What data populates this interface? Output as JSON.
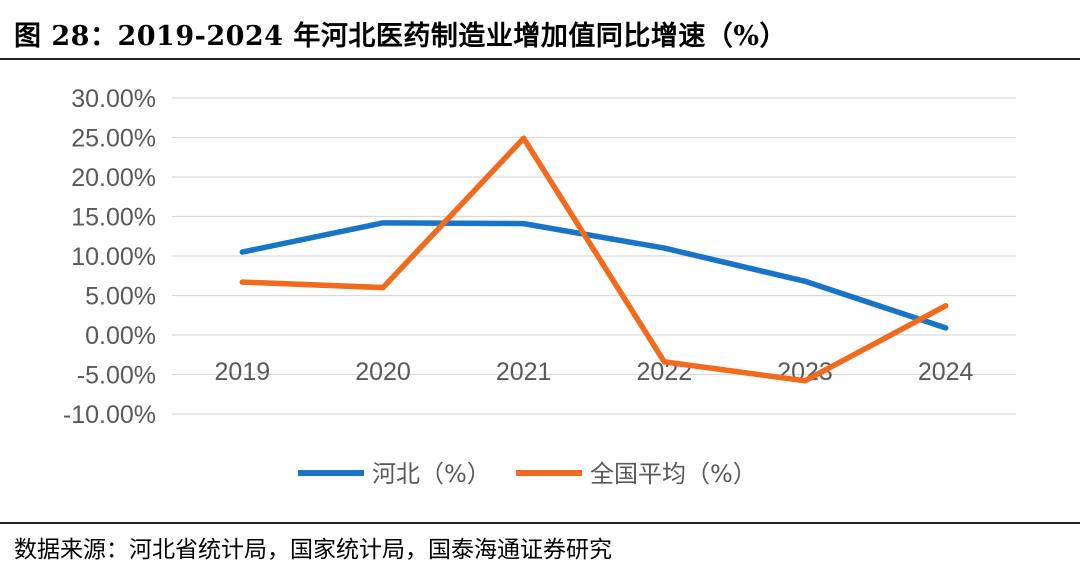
{
  "figure": {
    "title": "图 28：2019-2024 年河北医药制造业增加值同比增速（%）",
    "source": "数据来源：河北省统计局，国家统计局，国泰海通证券研究"
  },
  "chart_data": {
    "type": "line",
    "categories": [
      "2019",
      "2020",
      "2021",
      "2022",
      "2023",
      "2024"
    ],
    "series": [
      {
        "name": "河北（%）",
        "color": "#1874C8",
        "values": [
          10.5,
          14.2,
          14.1,
          11.0,
          6.8,
          0.9
        ]
      },
      {
        "name": "全国平均（%）",
        "color": "#F26A1B",
        "values": [
          6.7,
          6.0,
          24.9,
          -3.4,
          -5.8,
          3.7
        ]
      }
    ],
    "yticks": [
      "30.00%",
      "25.00%",
      "20.00%",
      "15.00%",
      "10.00%",
      "5.00%",
      "0.00%",
      "-5.00%",
      "-10.00%"
    ],
    "ylim": [
      -10,
      30
    ],
    "grid": true,
    "legend_position": "bottom"
  }
}
